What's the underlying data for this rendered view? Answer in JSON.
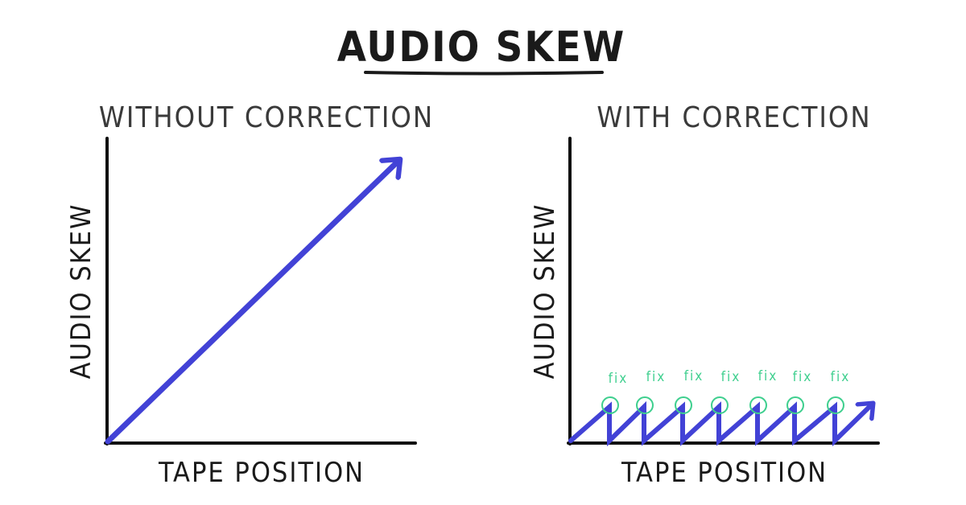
{
  "title": "AUDIO SKEW",
  "colors": {
    "ink": "#1a1a1a",
    "axis": "#111111",
    "subtitle": "#3a3a3a",
    "line": "#4242d6",
    "fix": "#3ecf8e"
  },
  "panels": [
    {
      "id": "without",
      "subtitle": "WITHOUT CORRECTION",
      "y_label": "AUDIO SKEW",
      "x_label": "TAPE POSITION",
      "curve": "linear increase"
    },
    {
      "id": "with",
      "subtitle": "WITH CORRECTION",
      "y_label": "AUDIO SKEW",
      "x_label": "TAPE POSITION",
      "curve": "sawtooth",
      "fix_label": "fix",
      "fix_count": 7
    }
  ]
}
